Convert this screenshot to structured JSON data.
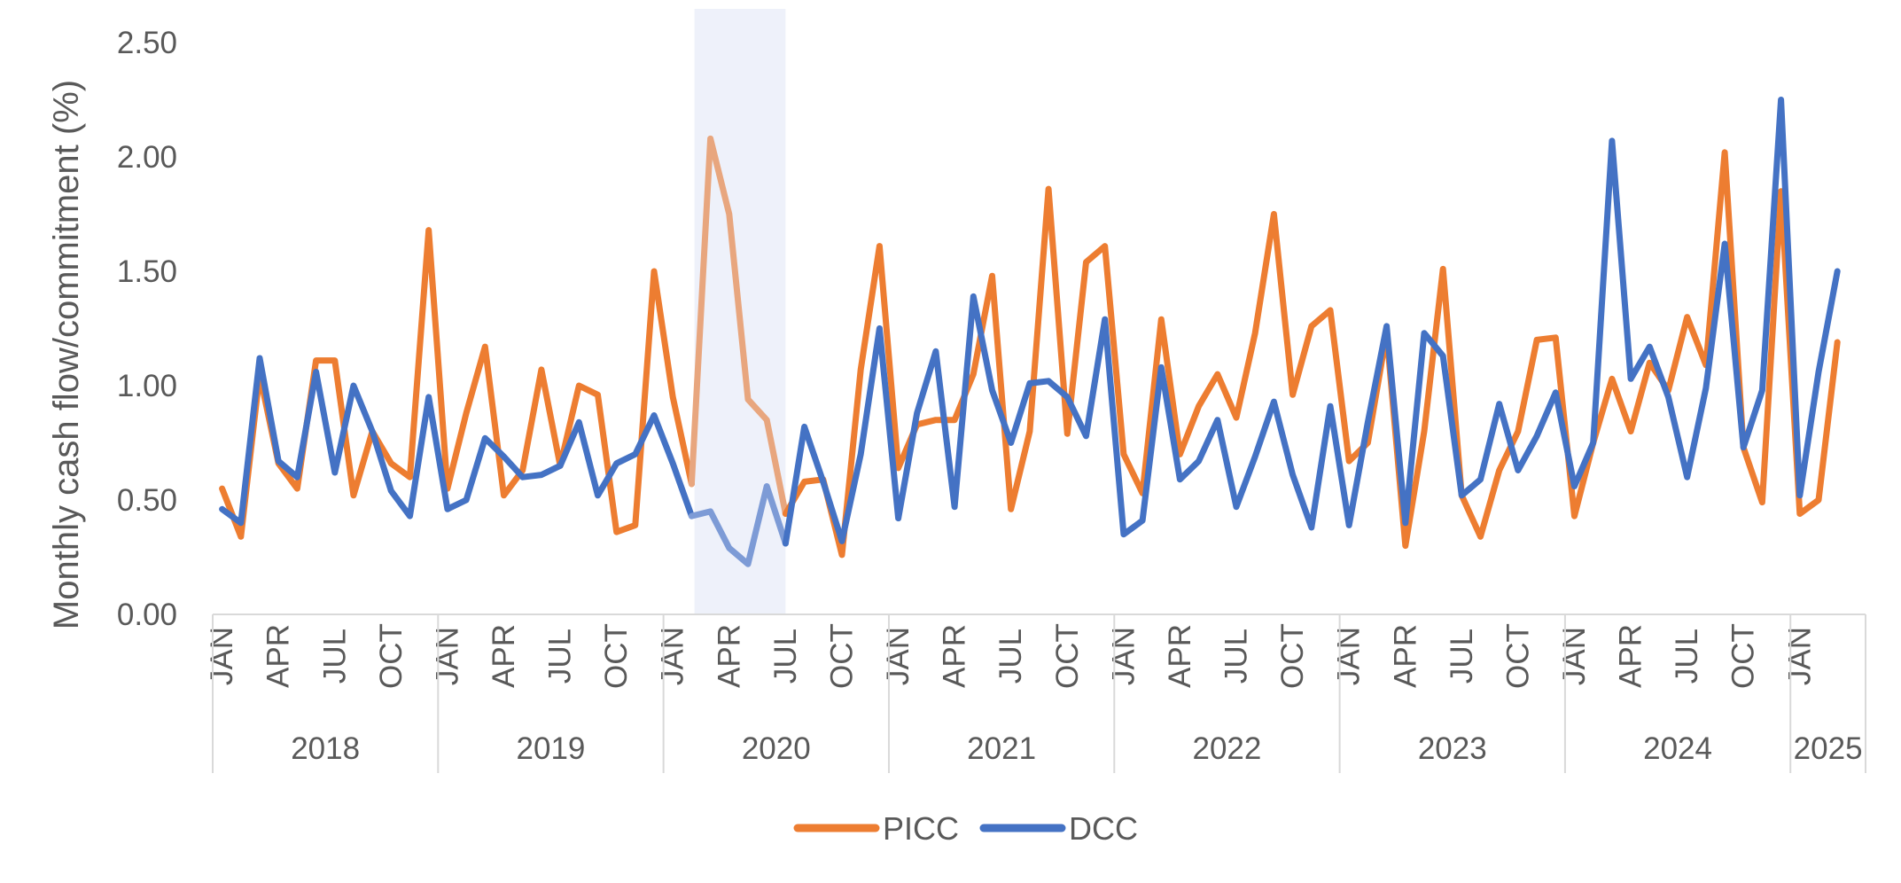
{
  "chart_data": {
    "type": "line",
    "title": "",
    "ylabel": "Monthly cash flow/commitment (%)",
    "xlabel": "",
    "ylim": [
      0,
      2.5
    ],
    "yticks": [
      "0.00",
      "0.50",
      "1.00",
      "1.50",
      "2.00",
      "2.50"
    ],
    "grid": false,
    "legend_position": "bottom-center",
    "month_ticks": [
      "JAN",
      "APR",
      "JUL",
      "OCT"
    ],
    "years": [
      "2018",
      "2019",
      "2020",
      "2021",
      "2022",
      "2023",
      "2024",
      "2025"
    ],
    "highlight": {
      "start": "2020-03",
      "end": "2020-07"
    },
    "x": [
      "2018-01",
      "2018-02",
      "2018-03",
      "2018-04",
      "2018-05",
      "2018-06",
      "2018-07",
      "2018-08",
      "2018-09",
      "2018-10",
      "2018-11",
      "2018-12",
      "2019-01",
      "2019-02",
      "2019-03",
      "2019-04",
      "2019-05",
      "2019-06",
      "2019-07",
      "2019-08",
      "2019-09",
      "2019-10",
      "2019-11",
      "2019-12",
      "2020-01",
      "2020-02",
      "2020-03",
      "2020-04",
      "2020-05",
      "2020-06",
      "2020-07",
      "2020-08",
      "2020-09",
      "2020-10",
      "2020-11",
      "2020-12",
      "2021-01",
      "2021-02",
      "2021-03",
      "2021-04",
      "2021-05",
      "2021-06",
      "2021-07",
      "2021-08",
      "2021-09",
      "2021-10",
      "2021-11",
      "2021-12",
      "2022-01",
      "2022-02",
      "2022-03",
      "2022-04",
      "2022-05",
      "2022-06",
      "2022-07",
      "2022-08",
      "2022-09",
      "2022-10",
      "2022-11",
      "2022-12",
      "2023-01",
      "2023-02",
      "2023-03",
      "2023-04",
      "2023-05",
      "2023-06",
      "2023-07",
      "2023-08",
      "2023-09",
      "2023-10",
      "2023-11",
      "2023-12",
      "2024-01",
      "2024-02",
      "2024-03",
      "2024-04",
      "2024-05",
      "2024-06",
      "2024-07",
      "2024-08",
      "2024-09",
      "2024-10",
      "2024-11",
      "2024-12",
      "2025-01",
      "2025-02",
      "2025-03"
    ],
    "series": [
      {
        "name": "PICC",
        "color": "#ED7D31",
        "highlight_color": "#E8A67E",
        "values": [
          0.55,
          0.34,
          1.05,
          0.66,
          0.55,
          1.11,
          1.11,
          0.52,
          0.8,
          0.66,
          0.6,
          1.68,
          0.55,
          0.88,
          1.17,
          0.52,
          0.63,
          1.07,
          0.65,
          1.0,
          0.96,
          0.36,
          0.39,
          1.5,
          0.95,
          0.57,
          2.08,
          1.75,
          0.94,
          0.85,
          0.44,
          0.58,
          0.59,
          0.26,
          1.07,
          1.61,
          0.64,
          0.83,
          0.85,
          0.85,
          1.05,
          1.48,
          0.46,
          0.8,
          1.86,
          0.79,
          1.54,
          1.61,
          0.7,
          0.53,
          1.29,
          0.7,
          0.91,
          1.05,
          0.86,
          1.23,
          1.75,
          0.96,
          1.26,
          1.33,
          0.67,
          0.75,
          1.23,
          0.3,
          0.8,
          1.51,
          0.52,
          0.34,
          0.63,
          0.8,
          1.2,
          1.21,
          0.43,
          0.75,
          1.03,
          0.8,
          1.1,
          0.98,
          1.3,
          1.09,
          2.02,
          0.73,
          0.49,
          1.85,
          0.44,
          0.5,
          1.19
        ]
      },
      {
        "name": "DCC",
        "color": "#4472C4",
        "highlight_color": "#7D9BD6",
        "values": [
          0.46,
          0.4,
          1.12,
          0.67,
          0.6,
          1.06,
          0.62,
          1.0,
          0.8,
          0.54,
          0.43,
          0.95,
          0.46,
          0.5,
          0.77,
          0.69,
          0.6,
          0.61,
          0.65,
          0.84,
          0.52,
          0.66,
          0.7,
          0.87,
          0.66,
          0.43,
          0.45,
          0.29,
          0.22,
          0.56,
          0.31,
          0.82,
          0.58,
          0.32,
          0.7,
          1.25,
          0.42,
          0.88,
          1.15,
          0.47,
          1.39,
          0.98,
          0.75,
          1.01,
          1.02,
          0.95,
          0.78,
          1.29,
          0.35,
          0.41,
          1.08,
          0.59,
          0.67,
          0.85,
          0.47,
          0.69,
          0.93,
          0.61,
          0.38,
          0.91,
          0.39,
          0.84,
          1.26,
          0.4,
          1.23,
          1.13,
          0.52,
          0.59,
          0.92,
          0.63,
          0.78,
          0.97,
          0.56,
          0.75,
          2.07,
          1.03,
          1.17,
          0.95,
          0.6,
          0.99,
          1.62,
          0.73,
          0.98,
          2.25,
          0.52,
          1.06,
          1.5
        ]
      }
    ]
  }
}
